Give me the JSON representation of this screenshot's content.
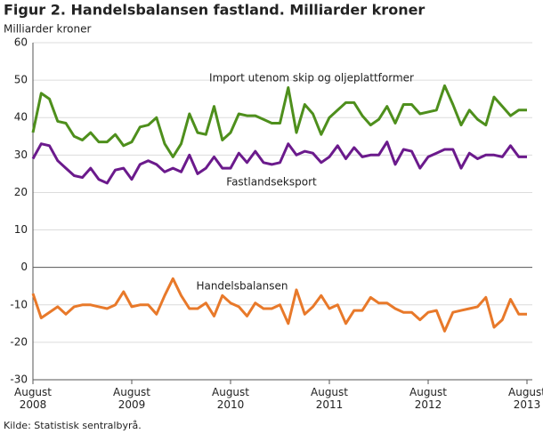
{
  "chart_data": {
    "type": "line",
    "title": "Figur 2. Handelsbalansen fastland. Milliarder kroner",
    "y_label": "Milliarder kroner",
    "source": "Kilde: Statistisk sentralbyrå.",
    "categories": [
      "August 2008",
      null,
      null,
      null,
      null,
      null,
      null,
      null,
      null,
      null,
      null,
      null,
      "August 2009",
      null,
      null,
      null,
      null,
      null,
      null,
      null,
      null,
      null,
      null,
      null,
      "August 2010",
      null,
      null,
      null,
      null,
      null,
      null,
      null,
      null,
      null,
      null,
      null,
      "August 2011",
      null,
      null,
      null,
      null,
      null,
      null,
      null,
      null,
      null,
      null,
      null,
      "August 2012",
      null,
      null,
      null,
      null,
      null,
      null,
      null,
      null,
      null,
      null,
      null,
      "August 2013"
    ],
    "series": [
      {
        "name": "Import utenom skip og oljeplattformer",
        "color": "#4e8f1c",
        "values": [
          36,
          46.5,
          45,
          39,
          38.5,
          35,
          34,
          36,
          33.5,
          33.5,
          35.5,
          32.5,
          33.5,
          37.5,
          38,
          40,
          33,
          29.5,
          33,
          41,
          36,
          35.5,
          43,
          34,
          36,
          41,
          40.5,
          40.5,
          39.5,
          38.5,
          38.5,
          48,
          36,
          43.5,
          41,
          35.5,
          40,
          42,
          44,
          44,
          40.5,
          38,
          39.5,
          43,
          38.5,
          43.5,
          43.5,
          41,
          41.5,
          42,
          48.5,
          43.5,
          38,
          42,
          39.5,
          38,
          45.5,
          43,
          40.5,
          42,
          42
        ]
      },
      {
        "name": "Fastlandseksport",
        "color": "#6b1a8c",
        "values": [
          29,
          33,
          32.5,
          28.5,
          26.5,
          24.5,
          24,
          26.5,
          23.5,
          22.5,
          26,
          26.5,
          23.5,
          27.5,
          28.5,
          27.5,
          25.5,
          26.5,
          25.5,
          30,
          25,
          26.5,
          29.5,
          26.5,
          26.5,
          30.5,
          28,
          31,
          28,
          27.5,
          28,
          33,
          30,
          31,
          30.5,
          28,
          29.5,
          32.5,
          29,
          32,
          29.5,
          30,
          30,
          33.5,
          27.5,
          31.5,
          31,
          26.5,
          29.5,
          30.5,
          31.5,
          31.5,
          26.5,
          30.5,
          29,
          30,
          30,
          29.5,
          32.5,
          29.5,
          29.5
        ]
      },
      {
        "name": "Handelsbalansen",
        "color": "#e8792a",
        "values": [
          -7,
          -13.5,
          -12,
          -10.5,
          -12.5,
          -10.5,
          -10,
          -10,
          -10.5,
          -11,
          -10,
          -6.5,
          -10.5,
          -10,
          -10,
          -12.5,
          -7.5,
          -3,
          -7.5,
          -11,
          -11,
          -9.5,
          -13,
          -7.5,
          -9.5,
          -10.5,
          -13,
          -9.5,
          -11,
          -11,
          -10,
          -15,
          -6,
          -12.5,
          -10.5,
          -7.5,
          -11,
          -10,
          -15,
          -11.5,
          -11.5,
          -8,
          -9.5,
          -9.5,
          -11,
          -12,
          -12,
          -14,
          -12,
          -11.5,
          -17,
          -12,
          -11.5,
          -11,
          -10.5,
          -8,
          -16,
          -14,
          -8.5,
          -12.5,
          -12.5
        ]
      }
    ],
    "ylim": [
      -30,
      60
    ],
    "yticks": [
      -30,
      -20,
      -10,
      0,
      10,
      20,
      30,
      40,
      50,
      60
    ],
    "grid": true
  }
}
